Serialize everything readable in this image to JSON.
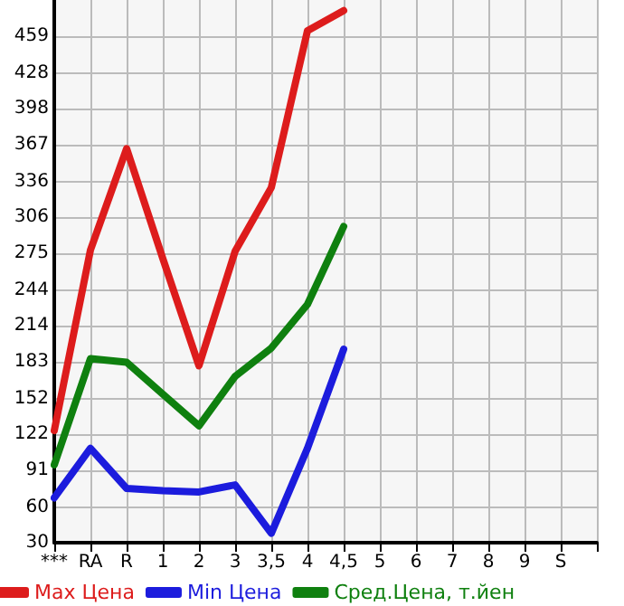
{
  "chart_data": {
    "type": "line",
    "categories": [
      "***",
      "RA",
      "R",
      "1",
      "2",
      "3",
      "3,5",
      "4",
      "4,5",
      "5",
      "6",
      "7",
      "8",
      "9",
      "S",
      null
    ],
    "series": [
      {
        "name": "Max Цена",
        "color": "#dd1c1c",
        "values": [
          125,
          278,
          364,
          271,
          180,
          277,
          331,
          464,
          481,
          null,
          null,
          null,
          null,
          null,
          null,
          null
        ]
      },
      {
        "name": "Min Цена",
        "color": "#1c1cdd",
        "values": [
          68,
          110,
          76,
          74,
          73,
          79,
          38,
          110,
          194,
          null,
          null,
          null,
          null,
          null,
          null,
          null
        ]
      },
      {
        "name": "Сред.Цена, т.йен",
        "color": "#0f800f",
        "values": [
          96,
          186,
          183,
          156,
          129,
          171,
          195,
          232,
          298,
          null,
          null,
          null,
          null,
          null,
          null,
          null
        ]
      }
    ],
    "ylim": [
      30,
      490
    ],
    "yticks": [
      30,
      60,
      91,
      122,
      152,
      183,
      214,
      244,
      275,
      306,
      336,
      367,
      398,
      428,
      459
    ],
    "grid": true,
    "legend": "bottom",
    "marker": "none",
    "line_style": "solid"
  }
}
